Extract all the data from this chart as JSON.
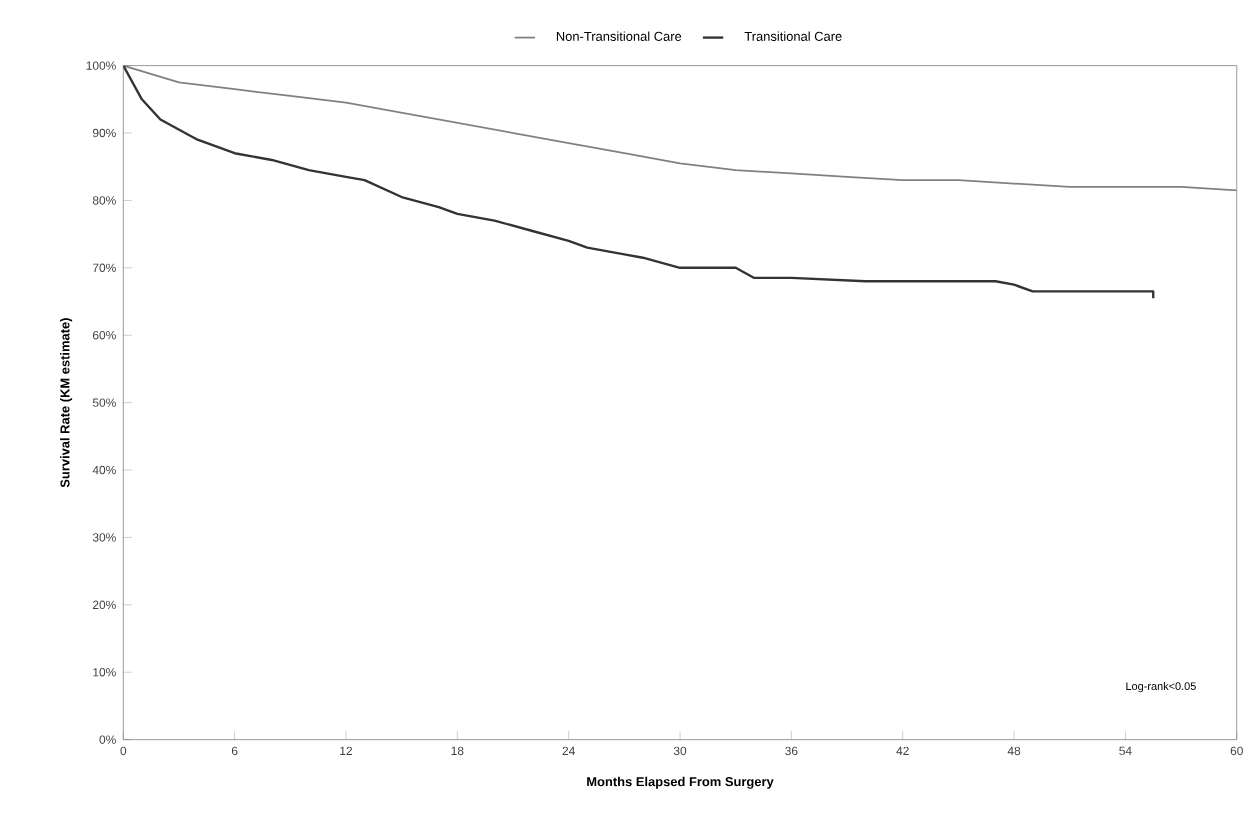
{
  "chart_data": {
    "type": "line",
    "xlabel": "Months Elapsed From Surgery",
    "ylabel": "Survival Rate (KM estimate)",
    "xlim": [
      0,
      60
    ],
    "xticks": [
      0,
      6,
      12,
      18,
      24,
      30,
      36,
      42,
      48,
      54,
      60
    ],
    "ylim": [
      0,
      100
    ],
    "yticks": [
      {
        "value": 0,
        "label": "0%"
      },
      {
        "value": 10,
        "label": "10%"
      },
      {
        "value": 20,
        "label": "20%"
      },
      {
        "value": 30,
        "label": "30%"
      },
      {
        "value": 40,
        "label": "40%"
      },
      {
        "value": 50,
        "label": "50%"
      },
      {
        "value": 60,
        "label": "60%"
      },
      {
        "value": 70,
        "label": "70%"
      },
      {
        "value": 80,
        "label": "80%"
      },
      {
        "value": 90,
        "label": "90%"
      },
      {
        "value": 100,
        "label": "100%"
      }
    ],
    "legend": "top",
    "grid": false,
    "marker": "none",
    "line_style": "solid",
    "annotations": [
      "Log-rank<0.05"
    ],
    "series": [
      {
        "name": "Non-Transitional Care",
        "color": "#808080",
        "x": [
          0,
          3,
          6,
          9,
          12,
          15,
          18,
          21,
          24,
          27,
          30,
          33,
          36,
          39,
          42,
          45,
          48,
          51,
          54,
          57,
          60
        ],
        "values": [
          100,
          97.5,
          96.5,
          95.5,
          94.5,
          93,
          91.5,
          90,
          88.5,
          87,
          85.5,
          84.5,
          84,
          83.5,
          83,
          83,
          82.5,
          82,
          82,
          82,
          81.5
        ]
      },
      {
        "name": "Transitional Care",
        "color": "#333333",
        "x": [
          0,
          1,
          2,
          3,
          4,
          6,
          8,
          10,
          12,
          13,
          15,
          17,
          18,
          20,
          22,
          24,
          25,
          27,
          28,
          30,
          33,
          34,
          36,
          40,
          42,
          47,
          48,
          49,
          50,
          55.5,
          55.5
        ],
        "values": [
          100,
          95,
          92,
          90.5,
          89,
          87,
          86,
          84.5,
          83.5,
          83,
          80.5,
          79,
          78,
          77,
          75.5,
          74,
          73,
          72,
          71.5,
          70,
          70,
          68.5,
          68.5,
          68,
          68,
          68,
          67.5,
          66.5,
          66.5,
          66.5,
          65.5
        ]
      }
    ]
  }
}
